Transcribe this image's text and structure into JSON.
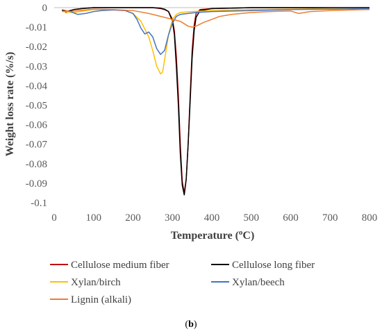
{
  "caption": {
    "prefix": "(",
    "letter": "b",
    "suffix": ")"
  },
  "chart_data": {
    "type": "line",
    "xlabel": "Temperature (°C)",
    "xlabel_parts": [
      "Temperature (",
      "o",
      "C)"
    ],
    "ylabel": "Weight loss rate (%/s)",
    "xlim": [
      0,
      800
    ],
    "ylim": [
      -0.1,
      0
    ],
    "x_ticks": [
      0,
      100,
      200,
      300,
      400,
      500,
      600,
      700,
      800
    ],
    "y_ticks": [
      0,
      -0.01,
      -0.02,
      -0.03,
      -0.04,
      -0.05,
      -0.06,
      -0.07,
      -0.08,
      -0.09,
      -0.1
    ],
    "y_tick_labels": [
      "0",
      "-0.01",
      "-0.02",
      "-0.03",
      "-0.04",
      "-0.05",
      "-0.06",
      "-0.07",
      "-0.08",
      "-0.09",
      "-0.1"
    ],
    "grid": false,
    "legend_position": "bottom",
    "series": [
      {
        "name": "Cellulose medium fiber",
        "color": "#c00000",
        "x": [
          20,
          30,
          50,
          70,
          100,
          150,
          200,
          250,
          270,
          280,
          290,
          300,
          305,
          310,
          315,
          320,
          325,
          330,
          335,
          340,
          345,
          350,
          355,
          360,
          370,
          400,
          500,
          600,
          700,
          800
        ],
        "y": [
          -0.001,
          -0.0025,
          -0.001,
          -0.0005,
          0,
          0,
          0,
          0,
          -0.0005,
          -0.001,
          -0.002,
          -0.006,
          -0.012,
          -0.025,
          -0.045,
          -0.07,
          -0.089,
          -0.095,
          -0.088,
          -0.07,
          -0.045,
          -0.022,
          -0.009,
          -0.003,
          -0.001,
          -0.0005,
          0,
          0,
          0,
          0
        ]
      },
      {
        "name": "Cellulose long fiber",
        "color": "#000000",
        "x": [
          20,
          30,
          50,
          70,
          100,
          150,
          200,
          250,
          270,
          280,
          290,
          300,
          305,
          310,
          315,
          320,
          325,
          330,
          335,
          340,
          345,
          350,
          355,
          360,
          370,
          400,
          500,
          600,
          700,
          800
        ],
        "y": [
          -0.0015,
          -0.002,
          -0.001,
          -0.0005,
          0,
          0,
          0,
          0,
          -0.0003,
          -0.0008,
          -0.002,
          -0.007,
          -0.014,
          -0.03,
          -0.05,
          -0.075,
          -0.091,
          -0.096,
          -0.088,
          -0.07,
          -0.048,
          -0.026,
          -0.012,
          -0.005,
          -0.0015,
          -0.0005,
          0,
          0,
          0,
          0
        ]
      },
      {
        "name": "Xylan/birch",
        "color": "#ffc000",
        "x": [
          20,
          50,
          80,
          100,
          150,
          180,
          200,
          220,
          240,
          250,
          260,
          270,
          275,
          280,
          290,
          300,
          310,
          320,
          350,
          400,
          500,
          600,
          700,
          800
        ],
        "y": [
          -0.002,
          -0.0025,
          -0.0015,
          -0.001,
          -0.001,
          -0.0015,
          -0.003,
          -0.007,
          -0.015,
          -0.022,
          -0.03,
          -0.034,
          -0.033,
          -0.027,
          -0.014,
          -0.006,
          -0.0035,
          -0.0025,
          -0.002,
          -0.0015,
          -0.001,
          -0.0008,
          -0.0005,
          -0.0005
        ]
      },
      {
        "name": "Xylan/beech",
        "color": "#4472c4",
        "x": [
          20,
          40,
          60,
          80,
          100,
          120,
          150,
          180,
          200,
          210,
          220,
          230,
          240,
          250,
          260,
          270,
          280,
          290,
          300,
          310,
          320,
          340,
          360,
          400,
          500,
          600,
          700,
          800
        ],
        "y": [
          -0.001,
          -0.002,
          -0.0035,
          -0.003,
          -0.002,
          -0.0015,
          -0.0012,
          -0.0015,
          -0.003,
          -0.006,
          -0.0105,
          -0.0135,
          -0.0125,
          -0.015,
          -0.021,
          -0.024,
          -0.022,
          -0.014,
          -0.008,
          -0.0045,
          -0.0035,
          -0.003,
          -0.0025,
          -0.002,
          -0.0015,
          -0.001,
          -0.0008,
          -0.0005
        ]
      },
      {
        "name": "Lignin (alkali)",
        "color": "#ed7d31",
        "x": [
          20,
          40,
          60,
          80,
          100,
          150,
          200,
          240,
          270,
          300,
          320,
          340,
          350,
          360,
          380,
          400,
          420,
          450,
          500,
          550,
          600,
          620,
          650,
          700,
          750,
          800
        ],
        "y": [
          -0.001,
          -0.002,
          -0.0015,
          -0.0012,
          -0.0008,
          -0.001,
          -0.0015,
          -0.003,
          -0.0045,
          -0.006,
          -0.007,
          -0.0095,
          -0.01,
          -0.0095,
          -0.0075,
          -0.006,
          -0.0045,
          -0.0035,
          -0.0025,
          -0.002,
          -0.0017,
          -0.003,
          -0.002,
          -0.0015,
          -0.0012,
          -0.001
        ]
      }
    ]
  }
}
